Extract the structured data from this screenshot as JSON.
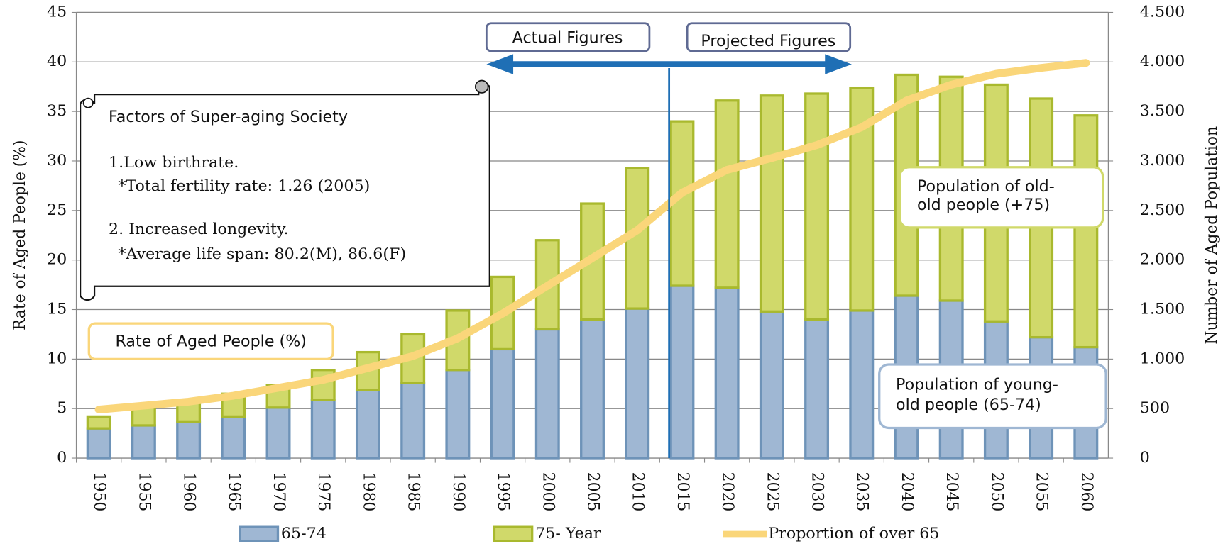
{
  "chart_data": {
    "type": "bar_line",
    "categories": [
      "1950",
      "1955",
      "1960",
      "1965",
      "1970",
      "1975",
      "1980",
      "1985",
      "1990",
      "1995",
      "2000",
      "2005",
      "2010",
      "2015",
      "2020",
      "2025",
      "2030",
      "2035",
      "2040",
      "2045",
      "2050",
      "2055",
      "2060"
    ],
    "series": [
      {
        "name": "65-74",
        "color": "#9fb7d3",
        "edge": "#6e93b8",
        "axis": "y2",
        "stack": true,
        "values": [
          300,
          330,
          370,
          420,
          510,
          590,
          690,
          760,
          890,
          1100,
          1300,
          1400,
          1510,
          1740,
          1720,
          1480,
          1400,
          1490,
          1640,
          1590,
          1380,
          1220,
          1120
        ]
      },
      {
        "name": "75- Year",
        "color": "#d0d96a",
        "edge": "#a9b92e",
        "axis": "y2",
        "stack": true,
        "values": [
          120,
          190,
          210,
          230,
          230,
          300,
          380,
          490,
          600,
          730,
          900,
          1170,
          1420,
          1660,
          1890,
          2180,
          2280,
          2250,
          2230,
          2260,
          2390,
          2410,
          2340
        ]
      },
      {
        "name": "Proportion of over 65",
        "color": "#fad67a",
        "type": "line",
        "values": [
          4.9,
          5.3,
          5.7,
          6.3,
          7.1,
          7.9,
          9.1,
          10.3,
          12.1,
          14.6,
          17.4,
          20.2,
          23,
          26.8,
          29.1,
          30.3,
          31.6,
          33.4,
          36.1,
          37.7,
          38.8,
          39.4,
          39.9
        ]
      }
    ],
    "ylabel": "Rate of Aged People (%)",
    "y2label": "Number of Aged Population",
    "ylim": [
      0,
      45
    ],
    "yticks": [
      0,
      5,
      10,
      15,
      20,
      25,
      30,
      35,
      40,
      45
    ],
    "y2lim": [
      0,
      4500
    ],
    "y2ticks": [
      0,
      {
        "value": 500,
        "label": "500"
      },
      {
        "value": 1000,
        "label": "1.000"
      },
      {
        "value": 1500,
        "label": "1.500"
      },
      {
        "value": 2000,
        "label": "2.000"
      },
      {
        "value": 2500,
        "label": "2.500"
      },
      {
        "value": 3000,
        "label": "3.000"
      },
      {
        "value": 3500,
        "label": "3.500"
      },
      {
        "value": 4000,
        "label": "4.000"
      },
      {
        "value": 4500,
        "label": "4.500"
      }
    ],
    "grid": true,
    "annotations": {
      "actual": "Actual Figures",
      "projected": "Projected Figures",
      "factors_title": "Factors of Super-aging Society",
      "factors_lines": [
        "1.Low birthrate.",
        "*Total fertility rate: 1.26 (2005)",
        "2. Increased longevity.",
        "*Average life span: 80.2(M), 86.6(F)"
      ],
      "rate_label": "Rate of Aged People (%)",
      "old_old": [
        "Population of old-",
        "old people (+75)"
      ],
      "young_old": [
        "Population of young-",
        "old people (65-74)"
      ]
    }
  }
}
